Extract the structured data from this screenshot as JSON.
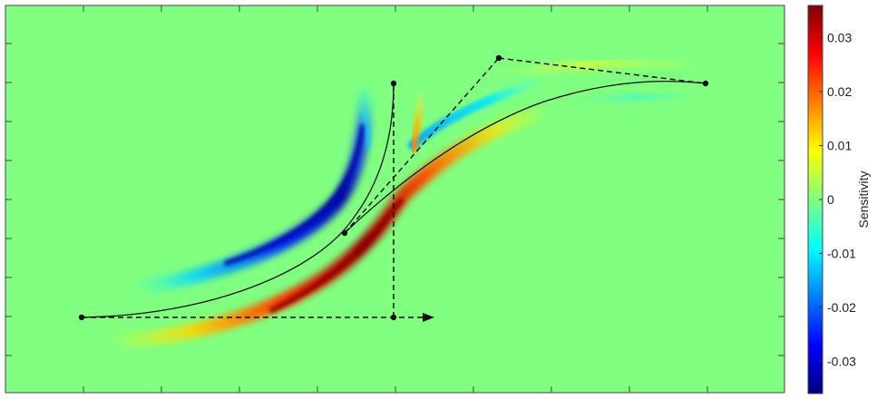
{
  "chart_data": {
    "type": "heatmap",
    "title": "",
    "xlabel": "",
    "ylabel": "",
    "background_value": 0,
    "grid": false,
    "colormap": "jet",
    "colorbar": {
      "label": "Sensitivity",
      "clim": [
        -0.036,
        0.036
      ],
      "ticks": [
        0.03,
        0.02,
        0.01,
        0,
        -0.01,
        -0.02,
        -0.03
      ],
      "tick_labels": [
        "0.03",
        "0.02",
        "0.01",
        "0",
        "-0.01",
        "-0.02",
        "-0.03"
      ],
      "placement": "right"
    },
    "colors": {
      "curve": "#111111",
      "marker": "#111111",
      "frame": "#444444"
    },
    "sensitivity_bands": [
      {
        "name": "",
        "peak": -0.035
      },
      {
        "name": "",
        "peak": 0.036
      },
      {
        "name": "",
        "peak": -0.012
      },
      {
        "name": "",
        "peak": 0.012
      },
      {
        "name": "",
        "peak": 0.02
      },
      {
        "name": "",
        "peak": 0.004
      },
      {
        "name": "",
        "peak": -0.005
      }
    ]
  }
}
